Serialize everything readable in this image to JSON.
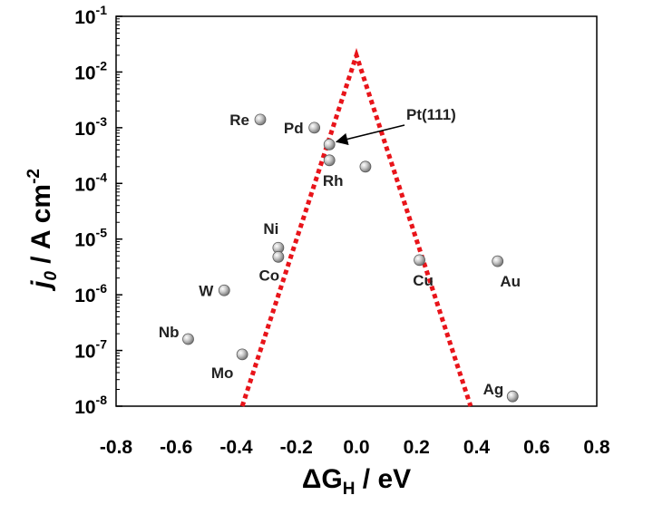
{
  "chart_data": {
    "type": "scatter",
    "xlabel": {
      "main": "ΔG",
      "sub": "H",
      "rest": " / eV"
    },
    "ylabel": {
      "italic": "j",
      "sub": "0",
      "rest": " / A cm",
      "sup": "-2"
    },
    "xlim": [
      -0.8,
      0.8
    ],
    "ylim": [
      1e-08,
      0.1
    ],
    "y_scale": "log",
    "x_ticks": [
      "-0.8",
      "-0.6",
      "-0.4",
      "-0.2",
      "0.0",
      "0.2",
      "0.4",
      "0.6",
      "0.8"
    ],
    "y_ticks": [
      {
        "value": 1e-08,
        "base": "10",
        "exp": "-8"
      },
      {
        "value": 1e-07,
        "base": "10",
        "exp": "-7"
      },
      {
        "value": 1e-06,
        "base": "10",
        "exp": "-6"
      },
      {
        "value": 1e-05,
        "base": "10",
        "exp": "-5"
      },
      {
        "value": 0.0001,
        "base": "10",
        "exp": "-4"
      },
      {
        "value": 0.001,
        "base": "10",
        "exp": "-3"
      },
      {
        "value": 0.01,
        "base": "10",
        "exp": "-2"
      },
      {
        "value": 0.1,
        "base": "10",
        "exp": "-1"
      }
    ],
    "grid": false,
    "points": [
      {
        "label": "Re",
        "x": -0.32,
        "y": 0.0014,
        "label_pos": "left"
      },
      {
        "label": "Pd",
        "x": -0.14,
        "y": 0.001,
        "label_pos": "left"
      },
      {
        "label": "Pt(111)",
        "x": -0.09,
        "y": 0.0005,
        "label_pos": "arrow"
      },
      {
        "label": "Rh",
        "x": -0.09,
        "y": 0.00026,
        "label_pos": "below"
      },
      {
        "label": "",
        "x": 0.03,
        "y": 0.0002,
        "label_pos": "none"
      },
      {
        "label": "Ni",
        "x": -0.26,
        "y": 7e-06,
        "label_pos": "above"
      },
      {
        "label": "",
        "x": -0.26,
        "y": 4.8e-06,
        "label_pos": "none"
      },
      {
        "label": "Co",
        "x": -0.26,
        "y": 4.8e-06,
        "label_pos": "below"
      },
      {
        "label": "Cu",
        "x": 0.21,
        "y": 4.2e-06,
        "label_pos": "below"
      },
      {
        "label": "Au",
        "x": 0.47,
        "y": 4e-06,
        "label_pos": "below-right"
      },
      {
        "label": "W",
        "x": -0.44,
        "y": 1.2e-06,
        "label_pos": "left"
      },
      {
        "label": "Nb",
        "x": -0.56,
        "y": 1.6e-07,
        "label_pos": "left-up"
      },
      {
        "label": "Mo",
        "x": -0.38,
        "y": 8.5e-08,
        "label_pos": "below"
      },
      {
        "label": "Ag",
        "x": 0.52,
        "y": 1.5e-08,
        "label_pos": "left-up"
      }
    ],
    "volcano_line": {
      "color": "#e8141a",
      "style": "dotted",
      "points": [
        {
          "x": -0.38,
          "y": 1e-08
        },
        {
          "x": 0.0,
          "y": 0.02
        },
        {
          "x": 0.38,
          "y": 1e-08
        }
      ]
    },
    "marker_color": "#9a9a9a"
  }
}
